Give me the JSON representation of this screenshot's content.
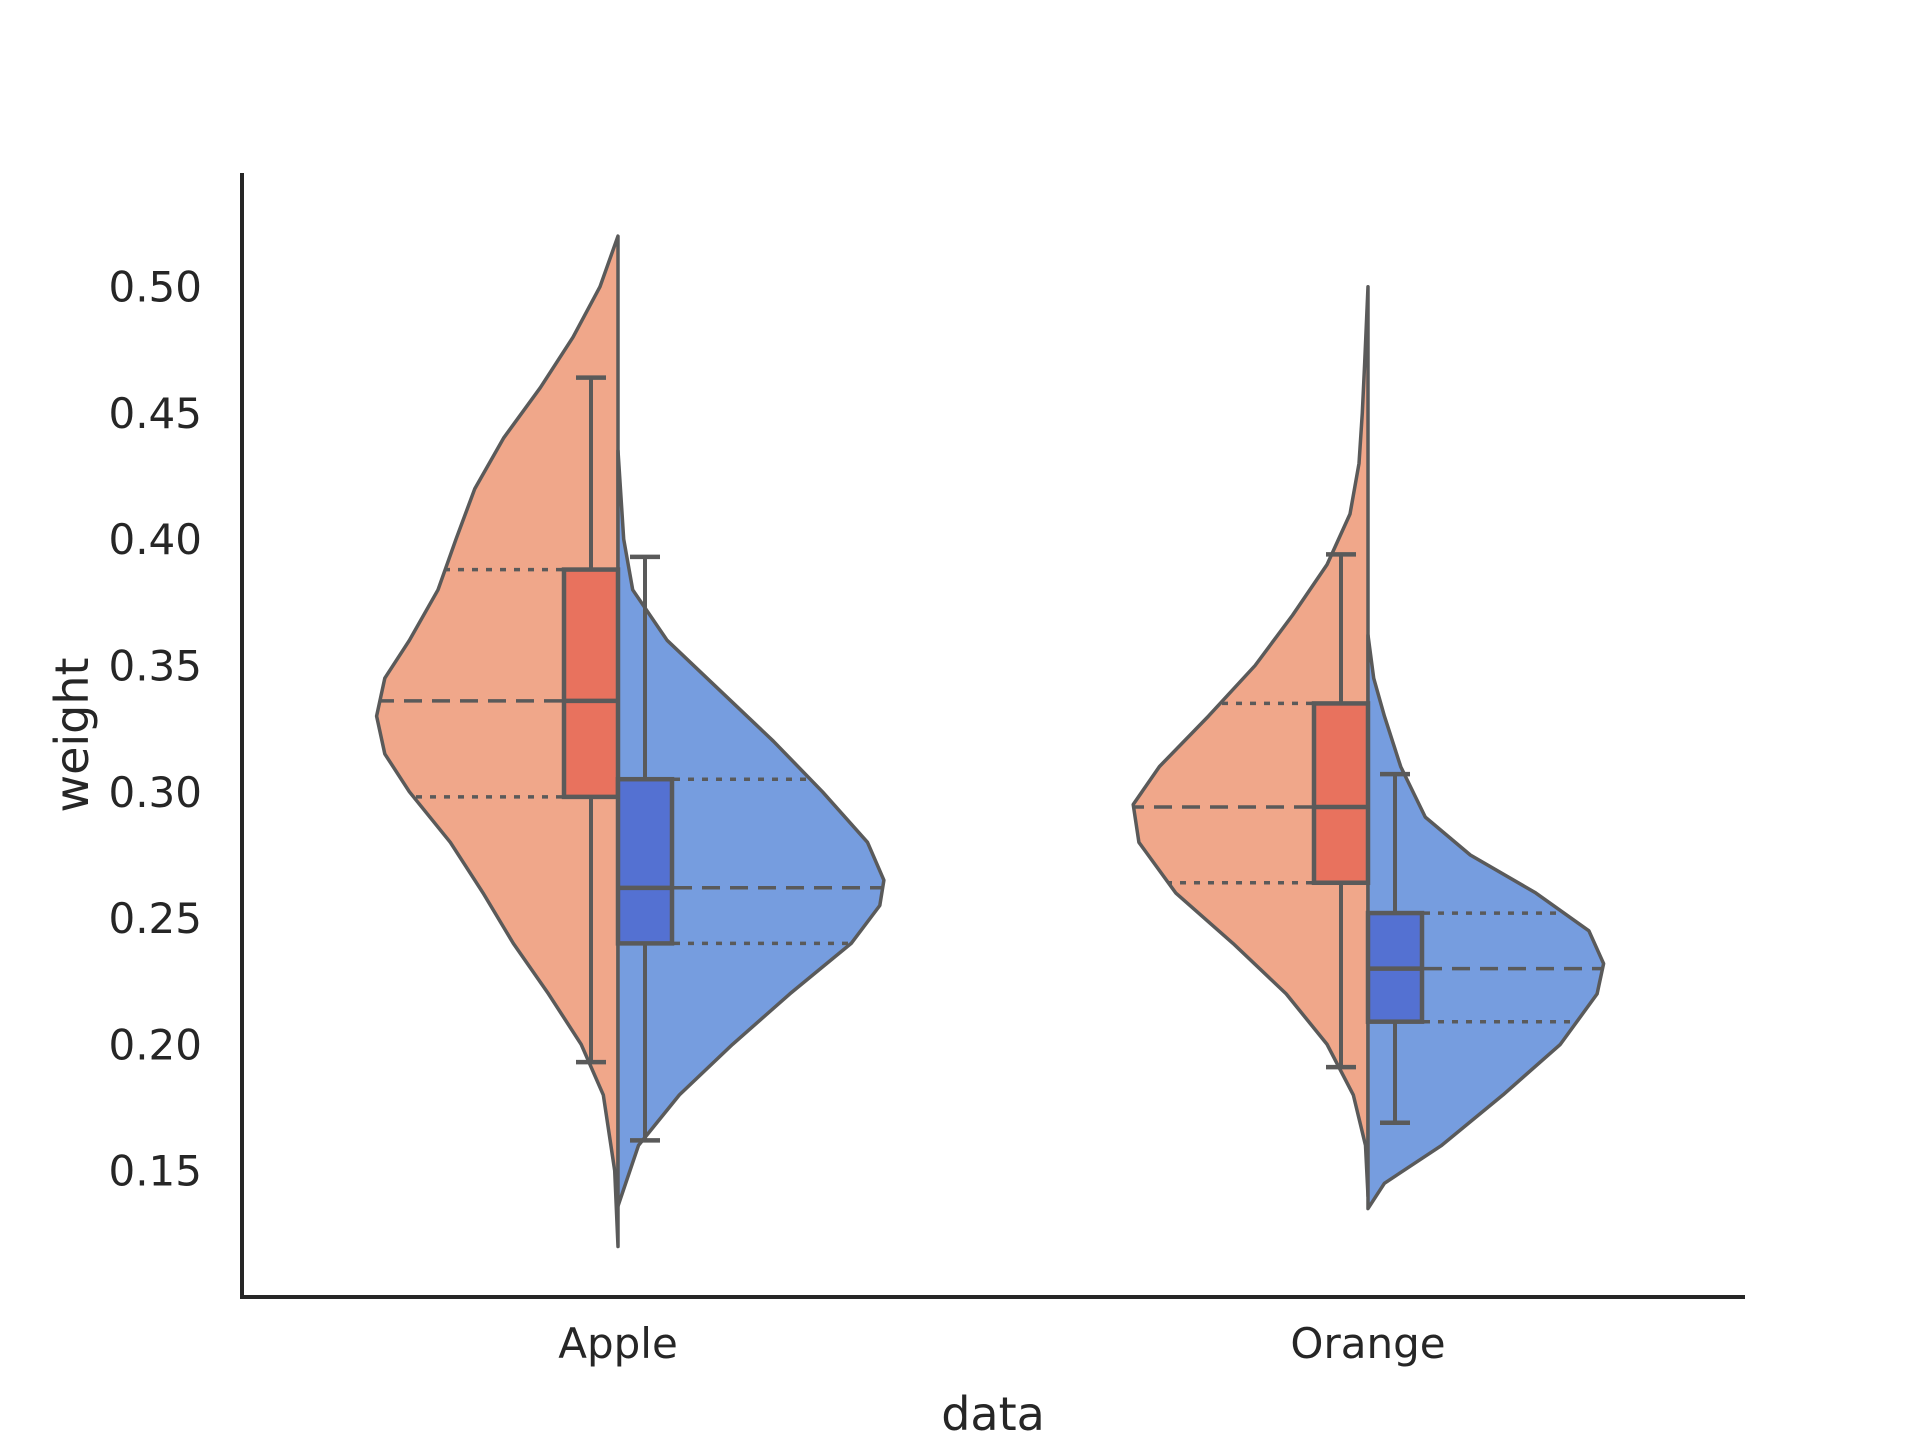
{
  "chart_data": {
    "type": "violin",
    "xlabel": "data",
    "ylabel": "weight",
    "categories": [
      "Apple",
      "Orange"
    ],
    "yticks": [
      "0.15",
      "0.20",
      "0.25",
      "0.30",
      "0.35",
      "0.40",
      "0.45",
      "0.50"
    ],
    "ylim": [
      0.1,
      0.545
    ],
    "split": true,
    "inner": "quartiles",
    "grid": false,
    "legend": "none",
    "series": [
      {
        "color": "#f0a78a",
        "box_color": "#e8725e",
        "side": "left",
        "groups": [
          {
            "category": "Apple",
            "q1": 0.298,
            "median": 0.336,
            "q3": 0.388,
            "whisker_low": 0.193,
            "whisker_high": 0.464,
            "kde_min": 0.12,
            "kde_max": 0.52,
            "density": [
              [
                0.12,
                0.0
              ],
              [
                0.15,
                0.004
              ],
              [
                0.18,
                0.018
              ],
              [
                0.2,
                0.045
              ],
              [
                0.22,
                0.085
              ],
              [
                0.24,
                0.128
              ],
              [
                0.26,
                0.165
              ],
              [
                0.28,
                0.205
              ],
              [
                0.3,
                0.255
              ],
              [
                0.315,
                0.285
              ],
              [
                0.33,
                0.295
              ],
              [
                0.345,
                0.285
              ],
              [
                0.36,
                0.255
              ],
              [
                0.38,
                0.22
              ],
              [
                0.4,
                0.198
              ],
              [
                0.42,
                0.175
              ],
              [
                0.44,
                0.14
              ],
              [
                0.46,
                0.095
              ],
              [
                0.48,
                0.055
              ],
              [
                0.5,
                0.022
              ],
              [
                0.52,
                0.0
              ]
            ]
          },
          {
            "category": "Orange",
            "q1": 0.264,
            "median": 0.294,
            "q3": 0.335,
            "whisker_low": 0.191,
            "whisker_high": 0.394,
            "kde_min": 0.14,
            "kde_max": 0.5,
            "density": [
              [
                0.14,
                0.0
              ],
              [
                0.16,
                0.003
              ],
              [
                0.18,
                0.018
              ],
              [
                0.2,
                0.05
              ],
              [
                0.22,
                0.1
              ],
              [
                0.24,
                0.165
              ],
              [
                0.26,
                0.235
              ],
              [
                0.28,
                0.28
              ],
              [
                0.295,
                0.287
              ],
              [
                0.31,
                0.255
              ],
              [
                0.33,
                0.195
              ],
              [
                0.35,
                0.138
              ],
              [
                0.37,
                0.092
              ],
              [
                0.39,
                0.05
              ],
              [
                0.41,
                0.022
              ],
              [
                0.43,
                0.011
              ],
              [
                0.45,
                0.007
              ],
              [
                0.47,
                0.004
              ],
              [
                0.5,
                0.0
              ]
            ]
          }
        ]
      },
      {
        "color": "#769ddf",
        "box_color": "#5471d2",
        "side": "right",
        "groups": [
          {
            "category": "Apple",
            "q1": 0.24,
            "median": 0.262,
            "q3": 0.305,
            "whisker_low": 0.162,
            "whisker_high": 0.393,
            "kde_min": 0.136,
            "kde_max": 0.435,
            "density": [
              [
                0.136,
                0.0
              ],
              [
                0.16,
                0.025
              ],
              [
                0.18,
                0.075
              ],
              [
                0.2,
                0.14
              ],
              [
                0.22,
                0.21
              ],
              [
                0.24,
                0.285
              ],
              [
                0.255,
                0.32
              ],
              [
                0.265,
                0.325
              ],
              [
                0.28,
                0.305
              ],
              [
                0.3,
                0.25
              ],
              [
                0.32,
                0.19
              ],
              [
                0.34,
                0.125
              ],
              [
                0.36,
                0.06
              ],
              [
                0.38,
                0.018
              ],
              [
                0.4,
                0.007
              ],
              [
                0.435,
                0.0
              ]
            ]
          },
          {
            "category": "Orange",
            "q1": 0.209,
            "median": 0.23,
            "q3": 0.252,
            "whisker_low": 0.169,
            "whisker_high": 0.307,
            "kde_min": 0.135,
            "kde_max": 0.362,
            "density": [
              [
                0.135,
                0.0
              ],
              [
                0.145,
                0.02
              ],
              [
                0.16,
                0.09
              ],
              [
                0.18,
                0.165
              ],
              [
                0.2,
                0.235
              ],
              [
                0.22,
                0.28
              ],
              [
                0.232,
                0.288
              ],
              [
                0.245,
                0.27
              ],
              [
                0.26,
                0.205
              ],
              [
                0.275,
                0.125
              ],
              [
                0.29,
                0.07
              ],
              [
                0.31,
                0.04
              ],
              [
                0.33,
                0.02
              ],
              [
                0.345,
                0.007
              ],
              [
                0.362,
                0.0
              ]
            ]
          }
        ]
      }
    ]
  }
}
